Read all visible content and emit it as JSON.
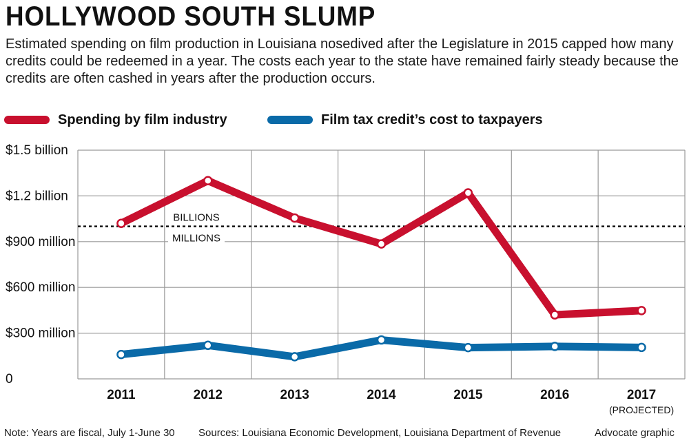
{
  "title": "HOLLYWOOD SOUTH SLUMP",
  "subtitle": "Estimated spending on film production in Louisiana nosedived after the Legislature in 2015 capped how many credits could be redeemed in a year. The costs each year to the state have remained fairly steady because the credits are often cashed in years after the production occurs.",
  "legend": [
    {
      "name": "Spending by film industry",
      "color": "#c8102e"
    },
    {
      "name": "Film tax credit’s cost to taxpayers",
      "color": "#0a6aa8"
    }
  ],
  "chart_data": {
    "type": "line",
    "title": "HOLLYWOOD SOUTH SLUMP",
    "categories": [
      "2011",
      "2012",
      "2013",
      "2014",
      "2015",
      "2016",
      "2017"
    ],
    "category_note": "(PROJECTED)",
    "y_ticks": [
      {
        "value": 0,
        "label": "0"
      },
      {
        "value": 300,
        "label": "$300 million"
      },
      {
        "value": 600,
        "label": "$600 million"
      },
      {
        "value": 900,
        "label": "$900 million"
      },
      {
        "value": 1200,
        "label": "$1.2 billion"
      },
      {
        "value": 1500,
        "label": "$1.5 billion"
      }
    ],
    "ylim": [
      0,
      1500
    ],
    "y_units": "millions of dollars",
    "reference_line": {
      "value": 1000,
      "label_above": "BILLIONS",
      "label_below": "MILLIONS"
    },
    "series": [
      {
        "name": "Spending by film industry",
        "color": "#c8102e",
        "values": [
          1020,
          1300,
          1055,
          885,
          1220,
          420,
          448
        ]
      },
      {
        "name": "Film tax credit’s cost to taxpayers",
        "color": "#0a6aa8",
        "values": [
          160,
          220,
          145,
          255,
          205,
          213,
          206
        ]
      }
    ],
    "grid": true
  },
  "footer": {
    "note": "Note: Years are fiscal, July 1-June 30",
    "sources": "Sources: Louisiana Economic Development, Louisiana Department of Revenue",
    "credit": "Advocate graphic"
  }
}
